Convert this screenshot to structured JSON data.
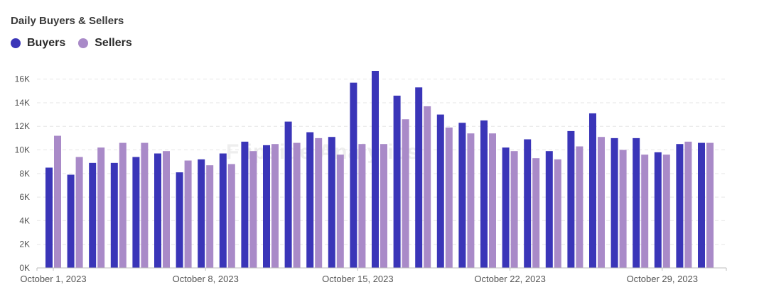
{
  "title": "Daily Buyers & Sellers",
  "watermark": "Flipside Analytics",
  "colors": {
    "buyers": "#3a35b8",
    "sellers": "#a98ac8",
    "grid": "#e6e6e6",
    "axis": "#bdbdbd",
    "tick_text": "#555555"
  },
  "chart_data": {
    "type": "bar",
    "title": "Daily Buyers & Sellers",
    "legend_position": "top-left",
    "grid": true,
    "ylim": [
      0,
      17000
    ],
    "y_ticks": [
      0,
      2000,
      4000,
      6000,
      8000,
      10000,
      12000,
      14000,
      16000
    ],
    "y_tick_labels": [
      "0K",
      "2K",
      "4K",
      "6K",
      "8K",
      "10K",
      "12K",
      "14K",
      "16K"
    ],
    "x_tick_labels": [
      {
        "label": "October 1, 2023",
        "index": 0
      },
      {
        "label": "October 8, 2023",
        "index": 7
      },
      {
        "label": "October 15, 2023",
        "index": 14
      },
      {
        "label": "October 22, 2023",
        "index": 21
      },
      {
        "label": "October 29, 2023",
        "index": 28
      }
    ],
    "categories": [
      "2023-10-01",
      "2023-10-02",
      "2023-10-03",
      "2023-10-04",
      "2023-10-05",
      "2023-10-06",
      "2023-10-07",
      "2023-10-08",
      "2023-10-09",
      "2023-10-10",
      "2023-10-11",
      "2023-10-12",
      "2023-10-13",
      "2023-10-14",
      "2023-10-15",
      "2023-10-16",
      "2023-10-17",
      "2023-10-18",
      "2023-10-19",
      "2023-10-20",
      "2023-10-21",
      "2023-10-22",
      "2023-10-23",
      "2023-10-24",
      "2023-10-25",
      "2023-10-26",
      "2023-10-27",
      "2023-10-28",
      "2023-10-29",
      "2023-10-30",
      "2023-10-31"
    ],
    "series": [
      {
        "name": "Buyers",
        "values": [
          8500,
          7900,
          8900,
          8900,
          9400,
          9700,
          8100,
          9200,
          9700,
          10700,
          10400,
          12400,
          11500,
          11100,
          15700,
          16700,
          14600,
          15300,
          13000,
          12300,
          12500,
          10200,
          10900,
          9900,
          11600,
          13100,
          11000,
          11000,
          9800,
          10500,
          10600
        ]
      },
      {
        "name": "Sellers",
        "values": [
          11200,
          9400,
          10200,
          10600,
          10600,
          9900,
          9100,
          8700,
          8800,
          9900,
          10500,
          10600,
          11000,
          9600,
          10500,
          10500,
          12600,
          13700,
          11900,
          11400,
          11400,
          9900,
          9300,
          9200,
          10300,
          11100,
          10000,
          9600,
          9600,
          10700,
          10600
        ]
      }
    ]
  }
}
